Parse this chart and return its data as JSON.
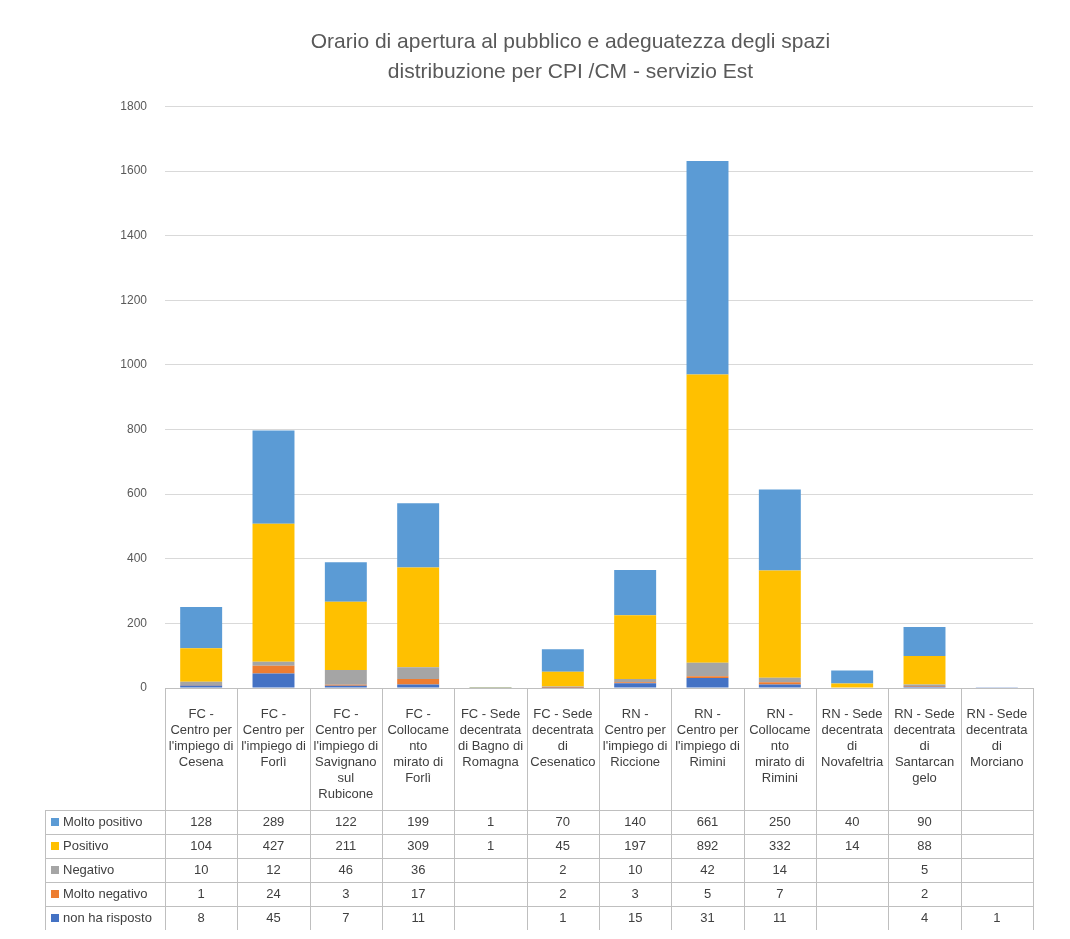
{
  "chart_data": {
    "type": "bar",
    "title": "Orario di apertura al pubblico e adeguatezza degli spazi",
    "subtitle": "distribuzione per CPI /CM - servizio Est",
    "categories": [
      "FC - Centro per l'impiego di Cesena",
      "FC - Centro per l'impiego di Forlì",
      "FC - Centro per l'impiego di Savignano sul Rubicone",
      "FC - Collocamento mirato di Forlì",
      "FC - Sede decentrata di Bagno di Romagna",
      "FC - Sede decentrata di Cesenatico",
      "RN - Centro per l'impiego di Riccione",
      "RN - Centro per l'impiego di Rimini",
      "RN - Collocamento mirato di Rimini",
      "RN - Sede decentrata di Novafeltria",
      "RN - Sede decentrata di Santarcangelo",
      "RN - Sede decentrata di Morciano"
    ],
    "series": [
      {
        "name": "non ha risposto",
        "color": "#4472c4",
        "values": [
          8,
          45,
          7,
          11,
          null,
          1,
          15,
          31,
          11,
          null,
          4,
          1
        ]
      },
      {
        "name": "Molto negativo",
        "color": "#ed7d31",
        "values": [
          1,
          24,
          3,
          17,
          null,
          2,
          3,
          5,
          7,
          null,
          2,
          null
        ]
      },
      {
        "name": "Negativo",
        "color": "#a5a5a5",
        "values": [
          10,
          12,
          46,
          36,
          null,
          2,
          10,
          42,
          14,
          null,
          5,
          null
        ]
      },
      {
        "name": "Positivo",
        "color": "#ffc000",
        "values": [
          104,
          427,
          211,
          309,
          1,
          45,
          197,
          892,
          332,
          14,
          88,
          null
        ]
      },
      {
        "name": "Molto positivo",
        "color": "#5b9bd5",
        "values": [
          128,
          289,
          122,
          199,
          1,
          70,
          140,
          661,
          250,
          40,
          90,
          null
        ]
      }
    ],
    "stacked": true,
    "ylim": [
      0,
      1800
    ],
    "yticks": [
      0,
      200,
      400,
      600,
      800,
      1000,
      1200,
      1400,
      1600,
      1800
    ],
    "grid": "y",
    "legend": "bottom",
    "data_labels": true
  }
}
